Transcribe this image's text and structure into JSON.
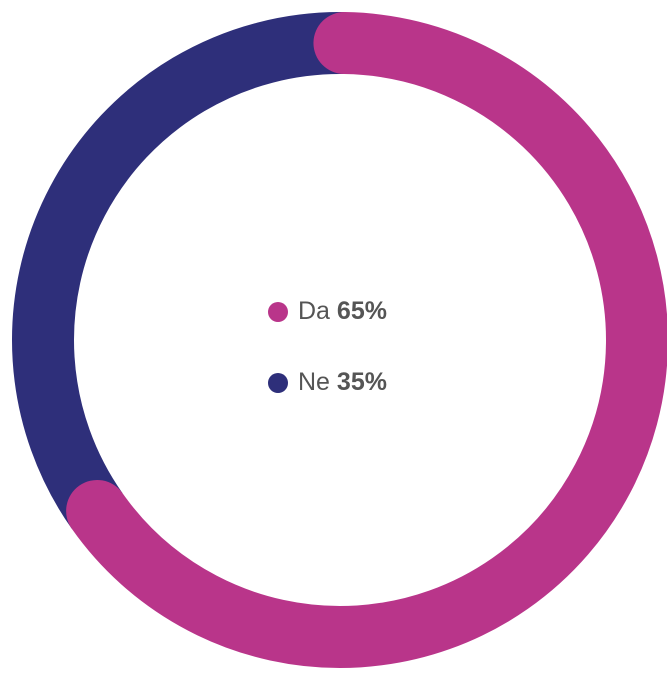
{
  "chart_data": {
    "type": "donut",
    "categories": [
      "Da",
      "Ne"
    ],
    "values": [
      65,
      35
    ],
    "value_labels": [
      "65%",
      "35%"
    ],
    "colors": [
      "#b9358a",
      "#2e2f7a"
    ]
  }
}
